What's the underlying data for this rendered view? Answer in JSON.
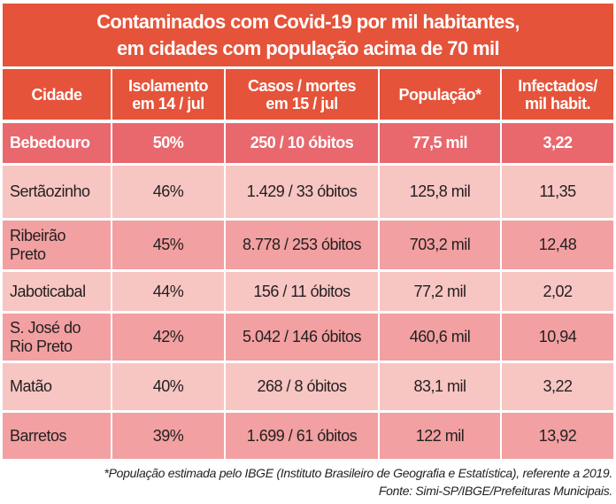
{
  "title": {
    "line1": "Contaminados com Covid-19 por mil habitantes,",
    "line2": "em cidades com população acima de 70 mil"
  },
  "colors": {
    "header": "#e5533a",
    "highlight_row": "#e8686e",
    "light_row": "#f7c5c2",
    "dark_row": "#f2a0a1"
  },
  "columns": [
    {
      "line1": "Cidade",
      "line2": ""
    },
    {
      "line1": "Isolamento",
      "line2": "em 14 / jul"
    },
    {
      "line1": "Casos / mortes",
      "line2": "em 15 / jul"
    },
    {
      "line1": "População*",
      "line2": ""
    },
    {
      "line1": "Infectados/",
      "line2": "mil habit."
    }
  ],
  "rows": [
    {
      "style": "hl",
      "height": 45,
      "cells": [
        "Bebedouro",
        "50%",
        "250 / 10 óbitos",
        "77,5 mil",
        "3,22"
      ]
    },
    {
      "style": "light",
      "height": 59,
      "cells": [
        "Sertãozinho",
        "46%",
        "1.429 / 33 óbitos",
        "125,8 mil",
        "11,35"
      ]
    },
    {
      "style": "dark",
      "height": 55,
      "cells": [
        "Ribeirão\nPreto",
        "45%",
        "8.778 / 253 óbitos",
        "703,2 mil",
        "12,48"
      ]
    },
    {
      "style": "light",
      "height": 44,
      "cells": [
        "Jaboticabal",
        "44%",
        "156 / 11 óbitos",
        "77,2 mil",
        "2,02"
      ]
    },
    {
      "style": "dark",
      "height": 53,
      "cells": [
        "S. José do\nRio Preto",
        "42%",
        "5.042 / 146 óbitos",
        "460,6 mil",
        "10,94"
      ]
    },
    {
      "style": "light",
      "height": 53,
      "cells": [
        "Matão",
        "40%",
        "268 / 8 óbitos",
        "83,1 mil",
        "3,22"
      ]
    },
    {
      "style": "dark",
      "height": 52,
      "cells": [
        "Barretos",
        "39%",
        "1.699 / 61 óbitos",
        "122 mil",
        "13,92"
      ]
    }
  ],
  "footnote": {
    "note": "*População estimada pelo IBGE (Instituto Brasileiro de Geografia e Estatística), referente a 2019.",
    "source": "Fonte: Simi-SP/IBGE/Prefeituras Municipais."
  }
}
